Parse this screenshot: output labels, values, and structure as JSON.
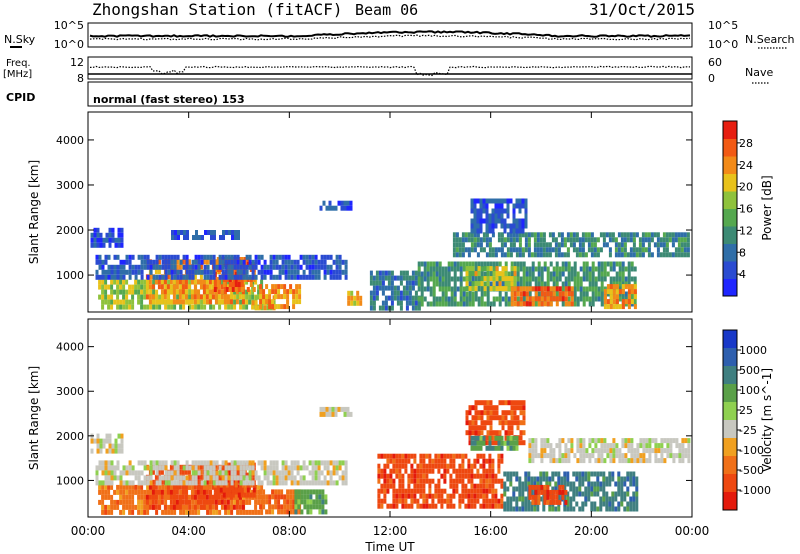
{
  "header": {
    "station": "Zhongshan Station (fitACF)",
    "beam": "Beam 06",
    "date": "31/Oct/2015"
  },
  "noise_panel": {
    "left_label": "N.Sky",
    "right_label": "N.Search",
    "left_ticks": [
      "10^5",
      "10^0"
    ],
    "right_ticks": [
      "10^5",
      "10^0"
    ]
  },
  "freq_panel": {
    "left_label_line1": "Freq.",
    "left_label_line2": "[MHz]",
    "left_ticks": [
      "12",
      "8"
    ],
    "right_ticks": [
      "60",
      "0"
    ],
    "right_label": "Nave"
  },
  "cpid_panel": {
    "label": "CPID",
    "mode": "normal (fast stereo) 153"
  },
  "colors": {
    "power_scale": [
      "#1f26ff",
      "#2a4bd1",
      "#2f6ea8",
      "#3c8a74",
      "#55a84f",
      "#8fc23c",
      "#e8c21b",
      "#f28a18",
      "#f25a14",
      "#e61e10"
    ],
    "velocity_scale": [
      "#1838c8",
      "#2e5fae",
      "#3f7f80",
      "#5aa048",
      "#8fd050",
      "#c8c8c0",
      "#f0a020",
      "#f07018",
      "#ee4810",
      "#e41a0c"
    ]
  },
  "chart_data": [
    {
      "type": "heatmap",
      "name": "power",
      "xlabel": "",
      "ylabel": "Slant Range [km]",
      "x_ticks": [
        "00:00",
        "04:00",
        "08:00",
        "12:00",
        "16:00",
        "20:00",
        "00:00"
      ],
      "x_range_hours": [
        0,
        24
      ],
      "y_ticks": [
        1000,
        2000,
        3000,
        4000
      ],
      "y_range_km": [
        180,
        4620
      ],
      "colorbar_label": "Power [dB]",
      "colorbar_ticks": [
        "28",
        "24",
        "20",
        "16",
        "12",
        "8",
        "4"
      ],
      "colorbar_range": [
        0,
        32
      ],
      "echo_regions": [
        {
          "t0": 0.4,
          "t1": 6.9,
          "r0": 250,
          "r1": 900,
          "value": 18
        },
        {
          "t0": 2.3,
          "t1": 6.2,
          "r0": 450,
          "r1": 1350,
          "value": 24
        },
        {
          "t0": 5.0,
          "t1": 6.6,
          "r0": 650,
          "r1": 1400,
          "value": 27
        },
        {
          "t0": 6.5,
          "t1": 7.4,
          "r0": 250,
          "r1": 550,
          "value": 20
        },
        {
          "t0": 6.8,
          "t1": 8.4,
          "r0": 350,
          "r1": 800,
          "value": 24
        },
        {
          "t0": 0.3,
          "t1": 10.2,
          "r0": 1000,
          "r1": 1450,
          "value": 6
        },
        {
          "t0": 0.1,
          "t1": 1.4,
          "r0": 1650,
          "r1": 2050,
          "value": 5
        },
        {
          "t0": 3.3,
          "t1": 6.0,
          "r0": 1800,
          "r1": 2000,
          "value": 6
        },
        {
          "t0": 9.2,
          "t1": 10.5,
          "r0": 2450,
          "r1": 2650,
          "value": 5
        },
        {
          "t0": 10.3,
          "t1": 10.8,
          "r0": 400,
          "r1": 650,
          "value": 22
        },
        {
          "t0": 11.2,
          "t1": 13.2,
          "r0": 300,
          "r1": 1100,
          "value": 9
        },
        {
          "t0": 13.1,
          "t1": 21.8,
          "r0": 400,
          "r1": 1300,
          "value": 12
        },
        {
          "t0": 15.0,
          "t1": 17.0,
          "r0": 700,
          "r1": 1200,
          "value": 19
        },
        {
          "t0": 16.8,
          "t1": 19.2,
          "r0": 350,
          "r1": 750,
          "value": 26
        },
        {
          "t0": 20.5,
          "t1": 21.7,
          "r0": 350,
          "r1": 800,
          "value": 24
        },
        {
          "t0": 14.5,
          "t1": 23.9,
          "r0": 1450,
          "r1": 1950,
          "value": 10
        },
        {
          "t0": 15.2,
          "t1": 17.4,
          "r0": 2000,
          "r1": 2700,
          "value": 6
        }
      ]
    },
    {
      "type": "heatmap",
      "name": "velocity",
      "xlabel": "Time UT",
      "ylabel": "Slant Range [km]",
      "x_ticks": [
        "00:00",
        "04:00",
        "08:00",
        "12:00",
        "16:00",
        "20:00",
        "00:00"
      ],
      "x_range_hours": [
        0,
        24
      ],
      "y_ticks": [
        1000,
        2000,
        3000,
        4000
      ],
      "y_range_km": [
        180,
        4620
      ],
      "colorbar_label": "Velocity [m s^-1]",
      "colorbar_ticks": [
        "1000",
        "500",
        "100",
        "25",
        "-25",
        "-100",
        "-500",
        "-1000"
      ],
      "echo_regions": [
        {
          "t0": 0.4,
          "t1": 6.9,
          "r0": 250,
          "r1": 900,
          "value": -120
        },
        {
          "t0": 2.3,
          "t1": 6.2,
          "r0": 450,
          "r1": 1350,
          "value": -300
        },
        {
          "t0": 5.0,
          "t1": 6.6,
          "r0": 650,
          "r1": 1400,
          "value": -250
        },
        {
          "t0": 6.8,
          "t1": 8.4,
          "r0": 350,
          "r1": 800,
          "value": -80
        },
        {
          "t0": 8.2,
          "t1": 9.4,
          "r0": 350,
          "r1": 800,
          "value": 80
        },
        {
          "t0": 0.3,
          "t1": 10.2,
          "r0": 1000,
          "r1": 1450,
          "value": 0
        },
        {
          "t0": 0.1,
          "t1": 1.4,
          "r0": 1650,
          "r1": 2050,
          "value": 0
        },
        {
          "t0": 9.2,
          "t1": 10.5,
          "r0": 2450,
          "r1": 2650,
          "value": 0
        },
        {
          "t0": 11.5,
          "t1": 16.5,
          "r0": 400,
          "r1": 1600,
          "value": -600
        },
        {
          "t0": 16.5,
          "t1": 21.8,
          "r0": 400,
          "r1": 1200,
          "value": 150
        },
        {
          "t0": 17.5,
          "t1": 19.0,
          "r0": 500,
          "r1": 900,
          "value": -300
        },
        {
          "t0": 15.0,
          "t1": 17.3,
          "r0": 1900,
          "r1": 2800,
          "value": -400
        },
        {
          "t0": 17.5,
          "t1": 23.9,
          "r0": 1450,
          "r1": 1950,
          "value": 0
        },
        {
          "t0": 15.2,
          "t1": 17.0,
          "r0": 1700,
          "r1": 2000,
          "value": 60
        }
      ]
    }
  ]
}
